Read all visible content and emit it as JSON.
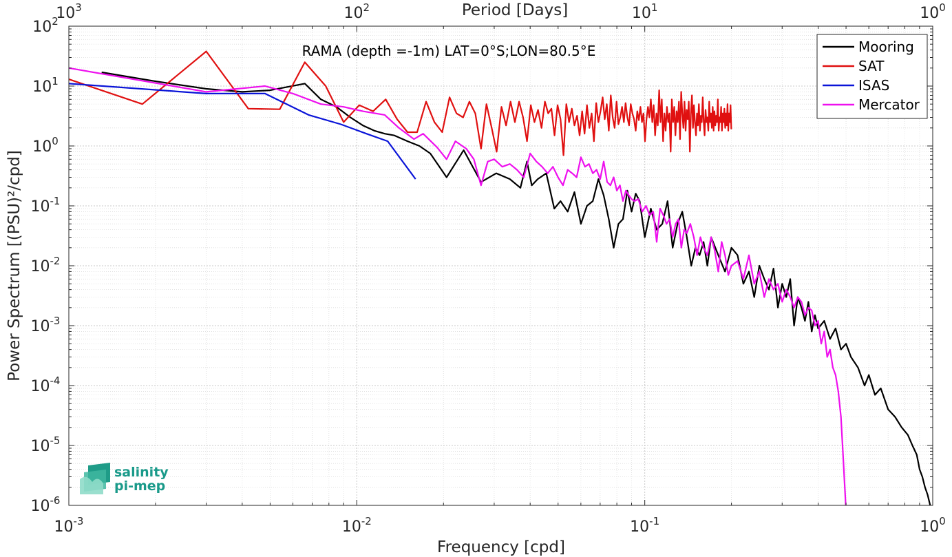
{
  "chart_data": {
    "type": "line",
    "title": "RAMA (depth =-1m) LAT=0°S;LON=80.5°E",
    "xlabel": "Frequency [cpd]",
    "ylabel": "Power Spectrum [(PSU)²/cpd]",
    "x2label": "Period [Days]",
    "xscale": "log",
    "yscale": "log",
    "xlim": [
      0.001,
      1
    ],
    "ylim": [
      1e-06,
      100
    ],
    "grid": true,
    "legend_position": "top-right",
    "x_ticks": [
      {
        "base": "10",
        "exp": "-3",
        "value": 0.001
      },
      {
        "base": "10",
        "exp": "-2",
        "value": 0.01
      },
      {
        "base": "10",
        "exp": "-1",
        "value": 0.1
      },
      {
        "base": "10",
        "exp": "0",
        "value": 1
      }
    ],
    "x2_ticks": [
      {
        "base": "10",
        "exp": "3",
        "value": 0.001
      },
      {
        "base": "10",
        "exp": "2",
        "value": 0.01
      },
      {
        "base": "10",
        "exp": "1",
        "value": 0.1
      },
      {
        "base": "10",
        "exp": "0",
        "value": 1
      }
    ],
    "y_ticks": [
      {
        "base": "10",
        "exp": "2",
        "value": 100
      },
      {
        "base": "10",
        "exp": "1",
        "value": 10
      },
      {
        "base": "10",
        "exp": "0",
        "value": 1
      },
      {
        "base": "10",
        "exp": "-1",
        "value": 0.1
      },
      {
        "base": "10",
        "exp": "-2",
        "value": 0.01
      },
      {
        "base": "10",
        "exp": "-3",
        "value": 0.001
      },
      {
        "base": "10",
        "exp": "-4",
        "value": 0.0001
      },
      {
        "base": "10",
        "exp": "-5",
        "value": 1e-05
      },
      {
        "base": "10",
        "exp": "-6",
        "value": 1e-06
      }
    ],
    "series": [
      {
        "name": "Mooring",
        "color": "#000000",
        "x": [
          0.0013,
          0.002,
          0.003,
          0.004,
          0.005,
          0.0066,
          0.0075,
          0.0085,
          0.0095,
          0.0105,
          0.0115,
          0.0125,
          0.0135,
          0.015,
          0.0165,
          0.018,
          0.0205,
          0.0235,
          0.027,
          0.0305,
          0.034,
          0.037,
          0.039,
          0.0405,
          0.0425,
          0.0455,
          0.0485,
          0.051,
          0.054,
          0.057,
          0.06,
          0.063,
          0.066,
          0.069,
          0.072,
          0.075,
          0.078,
          0.081,
          0.084,
          0.087,
          0.09,
          0.093,
          0.096,
          0.1,
          0.105,
          0.11,
          0.115,
          0.12,
          0.125,
          0.13,
          0.135,
          0.14,
          0.145,
          0.15,
          0.155,
          0.16,
          0.165,
          0.17,
          0.18,
          0.19,
          0.2,
          0.21,
          0.22,
          0.23,
          0.24,
          0.25,
          0.26,
          0.27,
          0.28,
          0.29,
          0.3,
          0.31,
          0.32,
          0.33,
          0.34,
          0.35,
          0.36,
          0.37,
          0.38,
          0.39,
          0.4,
          0.42,
          0.44,
          0.46,
          0.48,
          0.5,
          0.52,
          0.55,
          0.58,
          0.6,
          0.63,
          0.66,
          0.7,
          0.74,
          0.78,
          0.82,
          0.85,
          0.88,
          0.9,
          0.92,
          0.94,
          0.96,
          0.98
        ],
        "y": [
          17,
          12,
          9,
          8,
          8.5,
          11,
          6,
          4.5,
          3,
          2.2,
          1.8,
          1.6,
          1.5,
          1.2,
          1.0,
          0.75,
          0.3,
          0.85,
          0.25,
          0.35,
          0.28,
          0.2,
          0.55,
          0.22,
          0.28,
          0.35,
          0.09,
          0.12,
          0.08,
          0.17,
          0.05,
          0.1,
          0.12,
          0.28,
          0.15,
          0.06,
          0.02,
          0.05,
          0.06,
          0.18,
          0.08,
          0.16,
          0.12,
          0.03,
          0.09,
          0.04,
          0.05,
          0.12,
          0.02,
          0.05,
          0.08,
          0.03,
          0.01,
          0.02,
          0.015,
          0.025,
          0.01,
          0.03,
          0.015,
          0.008,
          0.02,
          0.015,
          0.005,
          0.008,
          0.003,
          0.01,
          0.006,
          0.004,
          0.009,
          0.002,
          0.005,
          0.003,
          0.006,
          0.001,
          0.003,
          0.002,
          0.0012,
          0.0025,
          0.0008,
          0.0015,
          0.0009,
          0.0012,
          0.0006,
          0.0009,
          0.0004,
          0.0005,
          0.0003,
          0.0002,
          0.0001,
          0.00015,
          7e-05,
          9e-05,
          4e-05,
          3e-05,
          2e-05,
          1.5e-05,
          1e-05,
          7e-06,
          4e-06,
          3e-06,
          2e-06,
          1.5e-06,
          1e-06
        ]
      },
      {
        "name": "SAT",
        "color": "#e01010",
        "x": [
          0.001,
          0.0018,
          0.003,
          0.0042,
          0.0054,
          0.0066,
          0.0078,
          0.009,
          0.0102,
          0.0114,
          0.0126,
          0.0138,
          0.015,
          0.0162,
          0.0174,
          0.0186,
          0.0198,
          0.021,
          0.0222,
          0.0234,
          0.0246,
          0.0258,
          0.027,
          0.0282,
          0.0294,
          0.0306,
          0.0318,
          0.033,
          0.0342,
          0.0354,
          0.0366,
          0.0378,
          0.039,
          0.0402,
          0.0414,
          0.0426,
          0.0438,
          0.045,
          0.0462,
          0.0474,
          0.0486,
          0.0498,
          0.051,
          0.0522,
          0.0534,
          0.0546,
          0.0558,
          0.057,
          0.0582,
          0.0594,
          0.0606,
          0.0618,
          0.063,
          0.0642,
          0.0654,
          0.0666,
          0.0678,
          0.069,
          0.0702,
          0.0714,
          0.0726,
          0.0738,
          0.075,
          0.0762,
          0.0774,
          0.0786,
          0.0798,
          0.081,
          0.0822,
          0.0834,
          0.0846,
          0.0858,
          0.087,
          0.0882,
          0.0894,
          0.0906,
          0.0918,
          0.093,
          0.0942,
          0.0954,
          0.0966,
          0.0978,
          0.099,
          0.1002,
          0.1014,
          0.1026,
          0.1038,
          0.105,
          0.1062,
          0.1074,
          0.1086,
          0.1098,
          0.111,
          0.1122,
          0.1134,
          0.1146,
          0.1158,
          0.117,
          0.1182,
          0.1194,
          0.1206,
          0.1218,
          0.123,
          0.1242,
          0.1254,
          0.1266,
          0.1278,
          0.129,
          0.1302,
          0.1314,
          0.1326,
          0.1338,
          0.135,
          0.1362,
          0.1374,
          0.1386,
          0.1398,
          0.141,
          0.1422,
          0.1434,
          0.1446,
          0.1458,
          0.147,
          0.1482,
          0.1494,
          0.1506,
          0.1518,
          0.153,
          0.1542,
          0.1554,
          0.1566,
          0.1578,
          0.159,
          0.1602,
          0.1614,
          0.1626,
          0.1638,
          0.165,
          0.1662,
          0.1674,
          0.1686,
          0.1698,
          0.171,
          0.1722,
          0.1734,
          0.1746,
          0.1758,
          0.177,
          0.1782,
          0.1794,
          0.1806,
          0.1818,
          0.183,
          0.1842,
          0.1854,
          0.1866,
          0.1878,
          0.189,
          0.1902,
          0.1914,
          0.1926,
          0.1938,
          0.195,
          0.1962,
          0.1974,
          0.1986,
          0.1998
        ],
        "y": [
          13,
          5,
          38,
          4.2,
          4.1,
          25,
          10,
          2.5,
          4.8,
          3.8,
          6,
          2.8,
          1.7,
          1.7,
          5.5,
          2.5,
          1.7,
          6.5,
          3.5,
          3,
          5.5,
          3.5,
          0.9,
          5,
          2,
          0.8,
          4.5,
          2.2,
          5.5,
          2.5,
          5.5,
          3,
          1.2,
          4.8,
          2.5,
          4,
          2,
          5.5,
          3.5,
          4.2,
          1.5,
          4.8,
          2.8,
          0.7,
          5,
          2.5,
          4.2,
          2.2,
          3.2,
          1.5,
          3.8,
          1.6,
          4.8,
          2,
          3.5,
          1.2,
          5.2,
          2.5,
          3.8,
          6.5,
          2.8,
          5,
          1.8,
          7,
          3,
          2,
          5.5,
          2.3,
          3,
          4.5,
          2.5,
          5.2,
          3,
          2.2,
          5,
          3.5,
          2.8,
          1.8,
          3.8,
          2.7,
          4.5,
          2.5,
          3.5,
          1.2,
          2.8,
          4.5,
          3,
          6,
          2.5,
          4.8,
          1.5,
          3.5,
          2.2,
          8.5,
          2.5,
          6,
          1.2,
          3.5,
          1.8,
          4.5,
          2.5,
          3.5,
          0.8,
          6,
          2.5,
          4.5,
          1.5,
          3.8,
          2.5,
          5.5,
          1.3,
          8,
          3.5,
          2,
          5.5,
          1.8,
          4,
          2.8,
          5.5,
          0.8,
          3.5,
          7,
          2,
          4.8,
          2.5,
          1.5,
          3.5,
          2.2,
          5,
          1.8,
          3.2,
          2.5,
          6.5,
          2.5,
          1.5,
          4,
          2.5,
          3,
          1.8,
          5.5,
          2.5,
          3.5,
          2,
          4.5,
          1.8,
          3.8,
          2.2,
          3.2,
          2.5,
          6,
          1.8,
          3,
          2.5,
          4.5,
          1.8,
          3.5,
          2.5,
          4.2,
          2,
          3.5,
          2.2,
          5,
          1.8,
          3.5,
          2.5,
          4.8,
          1.9
        ]
      },
      {
        "name": "ISAS",
        "color": "#0a14d8",
        "x": [
          0.001,
          0.003,
          0.0048,
          0.0068,
          0.0088,
          0.0108,
          0.0128,
          0.016
        ],
        "y": [
          11,
          7.5,
          7.5,
          3.3,
          2.3,
          1.6,
          1.2,
          0.28
        ]
      },
      {
        "name": "Mercator",
        "color": "#ee10ee",
        "x": [
          0.001,
          0.003,
          0.0048,
          0.006,
          0.0075,
          0.009,
          0.0105,
          0.0125,
          0.014,
          0.0158,
          0.017,
          0.019,
          0.0205,
          0.022,
          0.024,
          0.0255,
          0.027,
          0.0285,
          0.03,
          0.032,
          0.034,
          0.036,
          0.038,
          0.04,
          0.042,
          0.044,
          0.046,
          0.048,
          0.05,
          0.052,
          0.054,
          0.056,
          0.058,
          0.06,
          0.062,
          0.064,
          0.066,
          0.068,
          0.07,
          0.072,
          0.074,
          0.076,
          0.078,
          0.08,
          0.082,
          0.084,
          0.086,
          0.088,
          0.09,
          0.092,
          0.095,
          0.098,
          0.101,
          0.104,
          0.107,
          0.11,
          0.113,
          0.116,
          0.119,
          0.122,
          0.125,
          0.128,
          0.131,
          0.134,
          0.137,
          0.14,
          0.144,
          0.148,
          0.152,
          0.156,
          0.16,
          0.165,
          0.17,
          0.175,
          0.18,
          0.185,
          0.19,
          0.195,
          0.2,
          0.21,
          0.22,
          0.23,
          0.24,
          0.25,
          0.26,
          0.27,
          0.28,
          0.29,
          0.3,
          0.31,
          0.32,
          0.33,
          0.34,
          0.35,
          0.36,
          0.37,
          0.38,
          0.39,
          0.4,
          0.41,
          0.42,
          0.43,
          0.44,
          0.45,
          0.46,
          0.47,
          0.48,
          0.49,
          0.5
        ],
        "y": [
          20,
          8,
          10,
          7.5,
          5,
          4.5,
          3.8,
          3.3,
          2,
          1.3,
          1.6,
          0.95,
          0.6,
          1.2,
          0.9,
          0.6,
          0.22,
          0.55,
          0.6,
          0.45,
          0.5,
          0.4,
          0.3,
          0.75,
          0.55,
          0.45,
          0.35,
          0.45,
          0.3,
          0.22,
          0.4,
          0.35,
          0.3,
          0.65,
          0.45,
          0.5,
          0.35,
          0.4,
          0.28,
          0.55,
          0.25,
          0.22,
          0.3,
          0.18,
          0.22,
          0.12,
          0.18,
          0.15,
          0.13,
          0.12,
          0.13,
          0.08,
          0.1,
          0.07,
          0.08,
          0.025,
          0.09,
          0.07,
          0.05,
          0.06,
          0.03,
          0.05,
          0.06,
          0.02,
          0.04,
          0.035,
          0.05,
          0.03,
          0.015,
          0.03,
          0.02,
          0.015,
          0.03,
          0.018,
          0.008,
          0.025,
          0.015,
          0.007,
          0.01,
          0.012,
          0.006,
          0.015,
          0.005,
          0.008,
          0.003,
          0.006,
          0.004,
          0.005,
          0.0025,
          0.004,
          0.003,
          0.002,
          0.003,
          0.0025,
          0.0015,
          0.002,
          0.0018,
          0.001,
          0.0012,
          0.0005,
          0.0008,
          0.0003,
          0.0004,
          0.0002,
          0.00015,
          8e-05,
          3e-05,
          5e-06,
          8e-07
        ]
      }
    ]
  },
  "logo": {
    "line1": "salinity",
    "line2": "pi-mep",
    "color": "#1a9a8a"
  }
}
